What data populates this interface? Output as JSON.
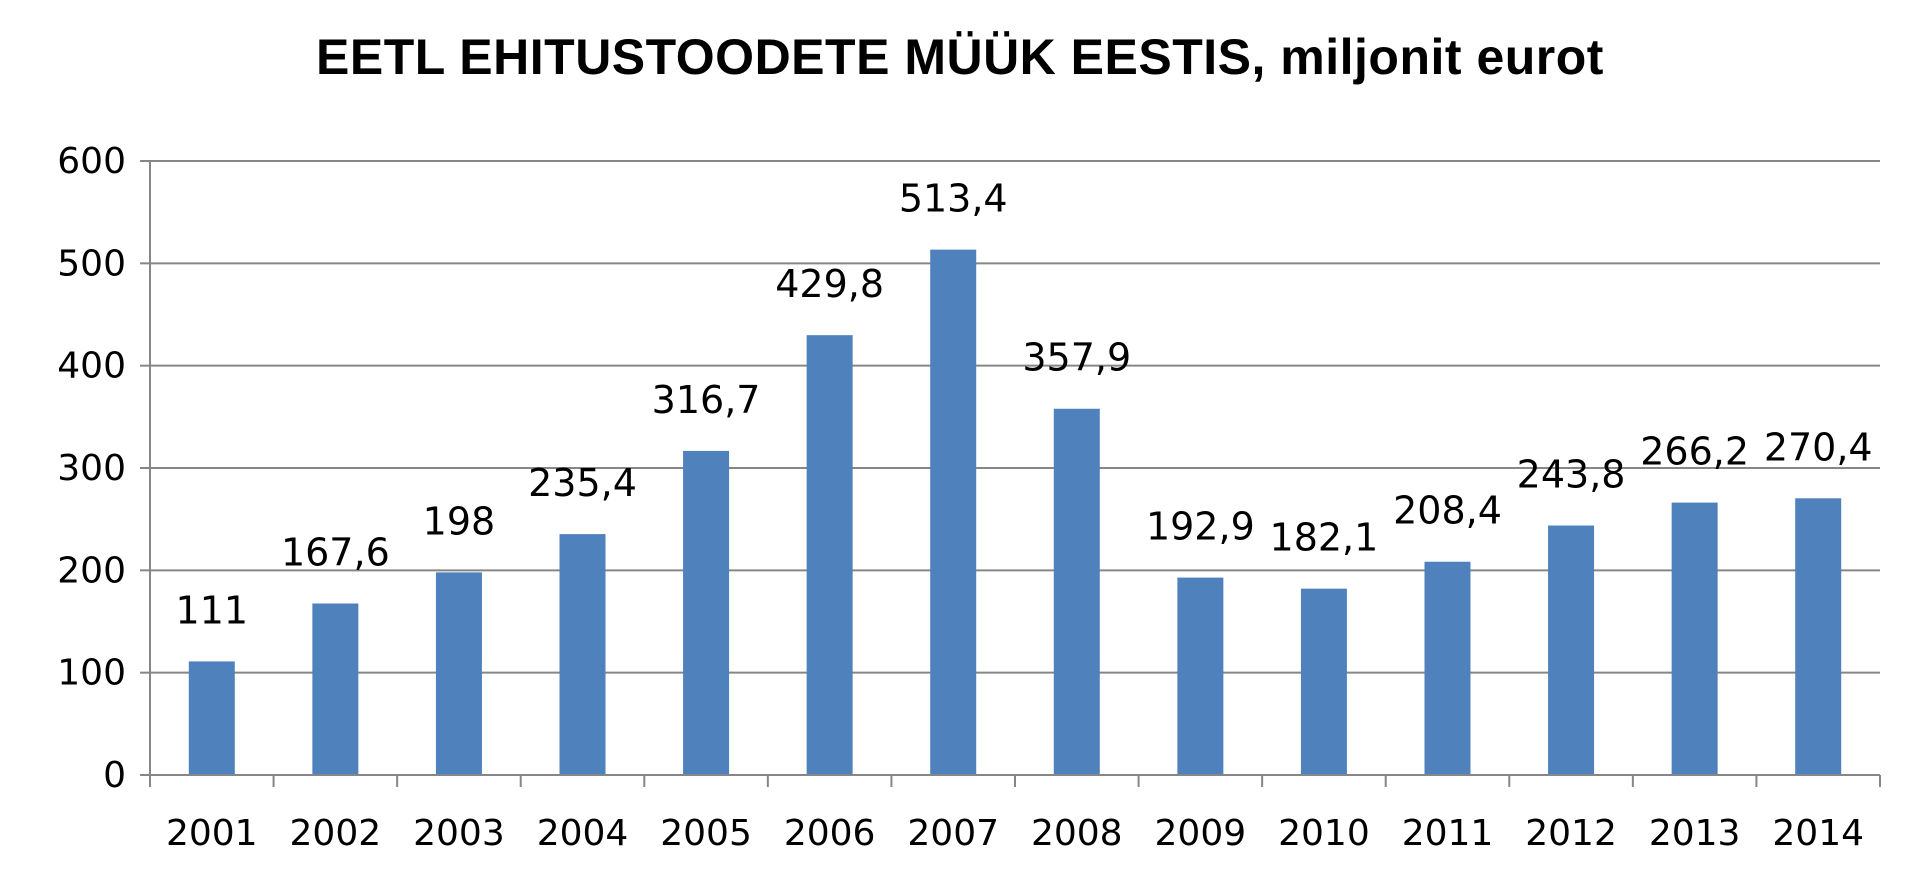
{
  "chart_data": {
    "type": "bar",
    "title": "EETL EHITUSTOODETE MÜÜK EESTIS, miljonit eurot",
    "xlabel": "",
    "ylabel": "",
    "categories": [
      "2001",
      "2002",
      "2003",
      "2004",
      "2005",
      "2006",
      "2007",
      "2008",
      "2009",
      "2010",
      "2011",
      "2012",
      "2013",
      "2014"
    ],
    "values": [
      111,
      167.6,
      198,
      235.4,
      316.7,
      429.8,
      513.4,
      357.9,
      192.9,
      182.1,
      208.4,
      243.8,
      266.2,
      270.4
    ],
    "data_labels": [
      "111",
      "167,6",
      "198",
      "235,4",
      "316,7",
      "429,8",
      "513,4",
      "357,9",
      "192,9",
      "182,1",
      "208,4",
      "243,8",
      "266,2",
      "270,4"
    ],
    "yticks": [
      "0",
      "100",
      "200",
      "300",
      "400",
      "500",
      "600"
    ],
    "ylim": [
      0,
      600
    ],
    "grid": true,
    "legend": "none",
    "colors": {
      "bar": "#4f81bd",
      "grid": "#868686",
      "axis": "#868686"
    }
  }
}
